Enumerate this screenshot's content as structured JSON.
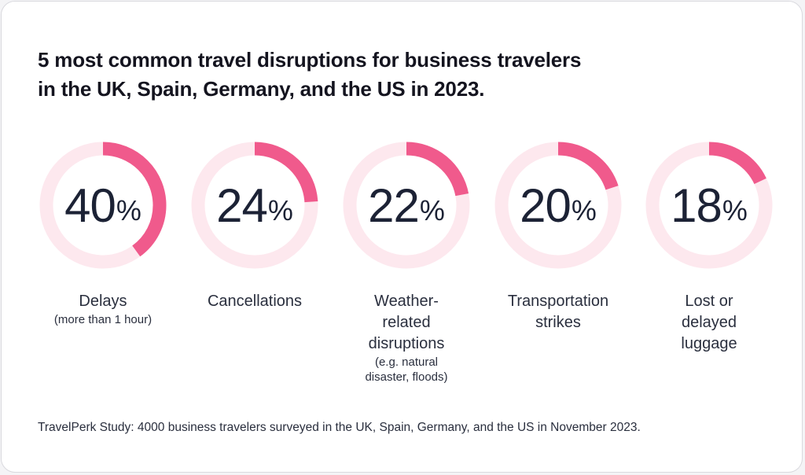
{
  "title_lines": [
    "5 most common travel disruptions for business travelers",
    "in the UK, Spain, Germany, and the US in 2023."
  ],
  "percent_sign": "%",
  "colors": {
    "ring_bg": "#fde8ee",
    "ring_fill": "#f05a8c",
    "text": "#1c2235"
  },
  "chart_data": {
    "type": "donut",
    "title": "5 most common travel disruptions for business travelers in the UK, Spain, Germany, and the US in 2023.",
    "categories": [
      "Delays",
      "Cancellations",
      "Weather-related disruptions",
      "Transportation strikes",
      "Lost or delayed luggage"
    ],
    "values": [
      40,
      24,
      22,
      20,
      18
    ],
    "unit": "%",
    "items": [
      {
        "value": "40",
        "label_lines": [
          "Delays"
        ],
        "sub_lines": [
          "(more than 1 hour)"
        ]
      },
      {
        "value": "24",
        "label_lines": [
          "Cancellations"
        ],
        "sub_lines": []
      },
      {
        "value": "22",
        "label_lines": [
          "Weather-",
          "related",
          "disruptions"
        ],
        "sub_lines": [
          "(e.g. natural",
          "disaster, floods)"
        ]
      },
      {
        "value": "20",
        "label_lines": [
          "Transportation",
          "strikes"
        ],
        "sub_lines": []
      },
      {
        "value": "18",
        "label_lines": [
          "Lost or",
          "delayed",
          "luggage"
        ],
        "sub_lines": []
      }
    ]
  },
  "source": "TravelPerk Study: 4000 business travelers surveyed in the UK, Spain, Germany, and the US in November 2023."
}
